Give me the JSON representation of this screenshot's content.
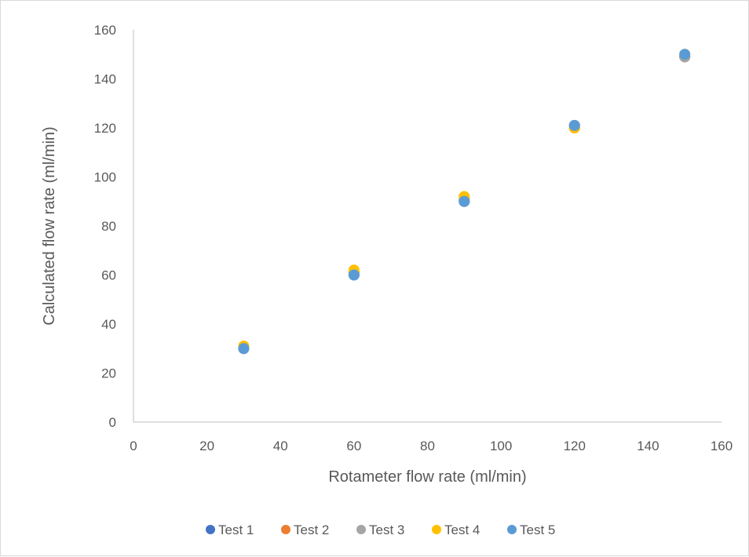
{
  "chart_data": {
    "type": "scatter",
    "title": "",
    "xlabel": "Rotameter flow rate (ml/min)",
    "ylabel": "Calculated flow rate (ml/min)",
    "xlim": [
      0,
      160
    ],
    "ylim": [
      0,
      160
    ],
    "xticks": [
      0,
      20,
      40,
      60,
      80,
      100,
      120,
      140,
      160
    ],
    "yticks": [
      0,
      20,
      40,
      60,
      80,
      100,
      120,
      140,
      160
    ],
    "x_grid": false,
    "y_grid": false,
    "legend_position": "bottom",
    "series": [
      {
        "name": "Test 1",
        "color": "#4472c4",
        "points": [
          [
            30,
            30
          ],
          [
            60,
            60
          ],
          [
            90,
            90
          ],
          [
            120,
            121
          ],
          [
            150,
            149
          ]
        ]
      },
      {
        "name": "Test 2",
        "color": "#ed7d31",
        "points": [
          [
            30,
            30
          ],
          [
            60,
            61
          ],
          [
            90,
            91
          ],
          [
            120,
            120
          ],
          [
            150,
            149
          ]
        ]
      },
      {
        "name": "Test 3",
        "color": "#a5a5a5",
        "points": [
          [
            30,
            30
          ],
          [
            60,
            61
          ],
          [
            90,
            91
          ],
          [
            120,
            120
          ],
          [
            150,
            149
          ]
        ]
      },
      {
        "name": "Test 4",
        "color": "#ffc000",
        "points": [
          [
            30,
            31
          ],
          [
            60,
            62
          ],
          [
            90,
            92
          ],
          [
            120,
            120
          ],
          [
            150,
            150
          ]
        ]
      },
      {
        "name": "Test 5",
        "color": "#5b9bd5",
        "points": [
          [
            30,
            30
          ],
          [
            60,
            60
          ],
          [
            90,
            90
          ],
          [
            120,
            121
          ],
          [
            150,
            150
          ]
        ]
      }
    ]
  }
}
